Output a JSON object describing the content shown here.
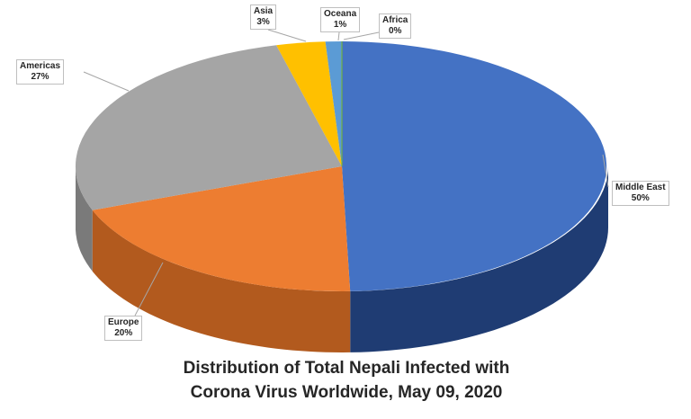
{
  "chart_data": {
    "type": "pie",
    "style": "3d-tilted",
    "title_line1": "Distribution of Total Nepali Infected with",
    "title_line2": "Corona Virus Worldwide, May 09, 2020",
    "slices": [
      {
        "name": "Middle East",
        "value": 50,
        "label": "50%",
        "color": "#4472C4",
        "side_color": "#1F3C73"
      },
      {
        "name": "Europe",
        "value": 20,
        "label": "20%",
        "color": "#ED7D31",
        "side_color": "#B25A1E"
      },
      {
        "name": "Americas",
        "value": 27,
        "label": "27%",
        "color": "#A5A5A5",
        "side_color": "#7A7A7A"
      },
      {
        "name": "Asia",
        "value": 3,
        "label": "3%",
        "color": "#FFC000",
        "side_color": "#B38600"
      },
      {
        "name": "Oceana",
        "value": 1,
        "label": "1%",
        "color": "#5B9BD5",
        "side_color": "#3D6E9E"
      },
      {
        "name": "Africa",
        "value": 0,
        "label": "0%",
        "color": "#70AD47",
        "side_color": "#4E7A32"
      }
    ],
    "start_angle_deg": 0,
    "direction": "clockwise",
    "legend": "none"
  }
}
